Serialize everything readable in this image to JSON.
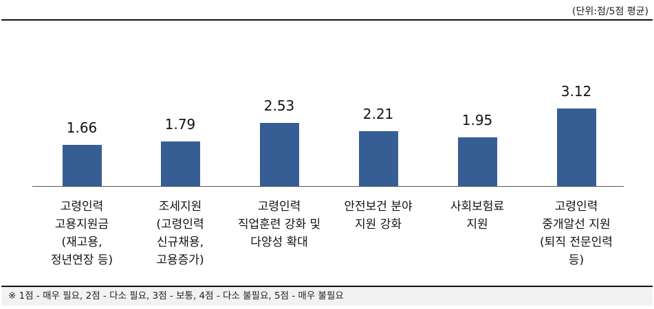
{
  "unit_label": "(단위:점/5점 평균)",
  "note": "※ 1점 - 매우 필요, 2점 - 다소 필요, 3점 - 보통, 4점 - 다소 불필요, 5점 - 매우 불필요",
  "colors": {
    "bar": "#365e94",
    "note_bg": "#f2f2f2"
  },
  "chart_data": {
    "type": "bar",
    "title": "",
    "xlabel": "",
    "ylabel": "",
    "unit": "점/5점 평균",
    "ylim": [
      0,
      5
    ],
    "grid": false,
    "legend": null,
    "categories": [
      "고령인력 고용지원금 (재고용, 정년연장 등)",
      "조세지원 (고령인력 신규채용, 고용증가)",
      "고령인력 직업훈련 강화 및 다양성 확대",
      "안전보건 분야 지원 강화",
      "사회보험료 지원",
      "고령인력 중개알선 지원 (퇴직 전문인력 등)"
    ],
    "values": [
      1.66,
      1.79,
      2.53,
      2.21,
      1.95,
      3.12
    ],
    "value_labels": [
      "1.66",
      "1.79",
      "2.53",
      "2.21",
      "1.95",
      "3.12"
    ],
    "category_lines": [
      "고령인력\n고용지원금\n(재고용,\n정년연장 등)",
      "조세지원\n(고령인력\n신규채용,\n고용증가)",
      "고령인력\n직업훈련 강화 및\n다양성 확대",
      "안전보건 분야\n지원 강화",
      "사회보험료\n지원",
      "고령인력\n중개알선 지원\n(퇴직 전문인력\n등)"
    ],
    "annotations": [
      "※ 1점 - 매우 필요, 2점 - 다소 필요, 3점 - 보통, 4점 - 다소 불필요, 5점 - 매우 불필요"
    ]
  }
}
